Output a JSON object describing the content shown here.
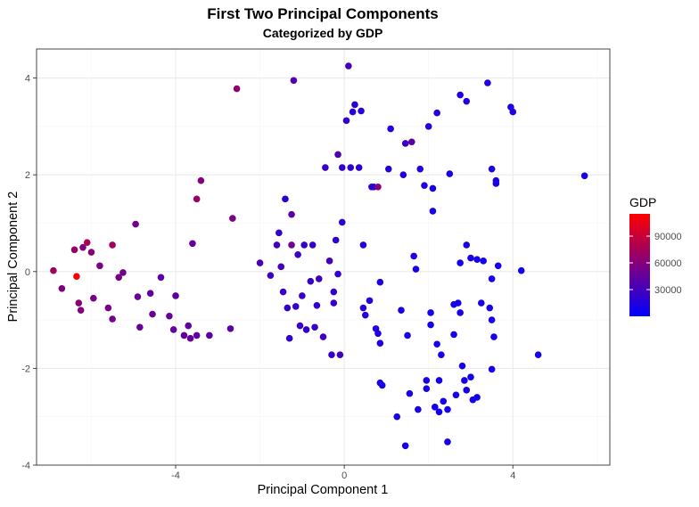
{
  "chart_data": {
    "type": "scatter",
    "title": "First Two Principal Components",
    "subtitle": "Categorized by GDP",
    "xlabel": "Principal Component 1",
    "ylabel": "Principal Component 2",
    "xlim": [
      -7.3,
      6.3
    ],
    "ylim": [
      -4,
      4.6
    ],
    "xticks": [
      -4,
      0,
      4
    ],
    "yticks": [
      -4,
      -2,
      0,
      2,
      4
    ],
    "grid": true,
    "legend": {
      "title": "GDP",
      "position": "right",
      "min": 0,
      "max": 115000,
      "breaks": [
        30000,
        60000,
        90000
      ],
      "break_labels": [
        "30000",
        "60000",
        "90000"
      ],
      "low_color": "#0000ff",
      "high_color": "#ff0000"
    },
    "points": [
      {
        "x": -6.9,
        "y": 0.02,
        "gdp": 72000
      },
      {
        "x": -6.7,
        "y": -0.35,
        "gdp": 58000
      },
      {
        "x": -6.4,
        "y": 0.45,
        "gdp": 68000
      },
      {
        "x": -6.35,
        "y": -0.1,
        "gdp": 112000
      },
      {
        "x": -6.3,
        "y": -0.65,
        "gdp": 62000
      },
      {
        "x": -6.25,
        "y": -0.8,
        "gdp": 60000
      },
      {
        "x": -6.2,
        "y": 0.5,
        "gdp": 58000
      },
      {
        "x": -6.1,
        "y": 0.6,
        "gdp": 78000
      },
      {
        "x": -6.0,
        "y": 0.4,
        "gdp": 62000
      },
      {
        "x": -5.95,
        "y": -0.55,
        "gdp": 56000
      },
      {
        "x": -5.8,
        "y": 0.12,
        "gdp": 55000
      },
      {
        "x": -5.6,
        "y": -0.75,
        "gdp": 54000
      },
      {
        "x": -5.5,
        "y": -0.98,
        "gdp": 52000
      },
      {
        "x": -5.5,
        "y": 0.55,
        "gdp": 74000
      },
      {
        "x": -5.35,
        "y": -0.12,
        "gdp": 55000
      },
      {
        "x": -5.25,
        "y": -0.02,
        "gdp": 52000
      },
      {
        "x": -4.95,
        "y": 0.98,
        "gdp": 50000
      },
      {
        "x": -4.9,
        "y": -0.52,
        "gdp": 48000
      },
      {
        "x": -4.85,
        "y": -1.15,
        "gdp": 46000
      },
      {
        "x": -4.6,
        "y": -0.45,
        "gdp": 44000
      },
      {
        "x": -4.55,
        "y": -0.88,
        "gdp": 48000
      },
      {
        "x": -4.35,
        "y": -0.12,
        "gdp": 40000
      },
      {
        "x": -4.15,
        "y": -0.92,
        "gdp": 46000
      },
      {
        "x": -4.05,
        "y": -1.2,
        "gdp": 45000
      },
      {
        "x": -4.0,
        "y": -0.5,
        "gdp": 42000
      },
      {
        "x": -3.8,
        "y": -1.32,
        "gdp": 44000
      },
      {
        "x": -3.7,
        "y": -1.12,
        "gdp": 42000
      },
      {
        "x": -3.65,
        "y": -1.38,
        "gdp": 45000
      },
      {
        "x": -3.6,
        "y": 0.58,
        "gdp": 45000
      },
      {
        "x": -3.5,
        "y": 1.5,
        "gdp": 70000
      },
      {
        "x": -3.5,
        "y": -1.32,
        "gdp": 43000
      },
      {
        "x": -3.4,
        "y": 1.88,
        "gdp": 60000
      },
      {
        "x": -3.2,
        "y": -1.32,
        "gdp": 42000
      },
      {
        "x": -2.7,
        "y": -1.18,
        "gdp": 40000
      },
      {
        "x": -2.65,
        "y": 1.1,
        "gdp": 56000
      },
      {
        "x": -2.55,
        "y": 3.78,
        "gdp": 66000
      },
      {
        "x": -2.0,
        "y": 0.18,
        "gdp": 34000
      },
      {
        "x": -1.75,
        "y": -0.08,
        "gdp": 28000
      },
      {
        "x": -1.6,
        "y": 0.55,
        "gdp": 30000
      },
      {
        "x": -1.55,
        "y": 0.8,
        "gdp": 22000
      },
      {
        "x": -1.5,
        "y": 0.1,
        "gdp": 30000
      },
      {
        "x": -1.45,
        "y": -0.42,
        "gdp": 26000
      },
      {
        "x": -1.4,
        "y": 1.5,
        "gdp": 20000
      },
      {
        "x": -1.35,
        "y": -0.75,
        "gdp": 22000
      },
      {
        "x": -1.3,
        "y": -1.38,
        "gdp": 24000
      },
      {
        "x": -1.25,
        "y": 1.18,
        "gdp": 42000
      },
      {
        "x": -1.25,
        "y": 0.55,
        "gdp": 50000
      },
      {
        "x": -1.2,
        "y": 3.95,
        "gdp": 38000
      },
      {
        "x": -1.15,
        "y": -0.72,
        "gdp": 25000
      },
      {
        "x": -1.1,
        "y": 0.35,
        "gdp": 28000
      },
      {
        "x": -1.05,
        "y": -1.12,
        "gdp": 24000
      },
      {
        "x": -1.0,
        "y": -0.5,
        "gdp": 26000
      },
      {
        "x": -0.95,
        "y": 0.55,
        "gdp": 24000
      },
      {
        "x": -0.9,
        "y": -1.2,
        "gdp": 22000
      },
      {
        "x": -0.8,
        "y": -0.2,
        "gdp": 26000
      },
      {
        "x": -0.75,
        "y": 0.55,
        "gdp": 24000
      },
      {
        "x": -0.7,
        "y": -1.15,
        "gdp": 24000
      },
      {
        "x": -0.65,
        "y": -0.7,
        "gdp": 22000
      },
      {
        "x": -0.6,
        "y": -0.15,
        "gdp": 28000
      },
      {
        "x": -0.5,
        "y": -1.35,
        "gdp": 26000
      },
      {
        "x": -0.45,
        "y": 2.15,
        "gdp": 26000
      },
      {
        "x": -0.35,
        "y": 0.22,
        "gdp": 30000
      },
      {
        "x": -0.3,
        "y": -1.72,
        "gdp": 24000
      },
      {
        "x": -0.25,
        "y": -0.65,
        "gdp": 24000
      },
      {
        "x": -0.25,
        "y": -0.42,
        "gdp": 22000
      },
      {
        "x": -0.2,
        "y": 0.65,
        "gdp": 22000
      },
      {
        "x": -0.15,
        "y": 2.42,
        "gdp": 34000
      },
      {
        "x": -0.15,
        "y": -0.05,
        "gdp": 24000
      },
      {
        "x": -0.1,
        "y": -1.72,
        "gdp": 30000
      },
      {
        "x": -0.05,
        "y": 2.15,
        "gdp": 24000
      },
      {
        "x": -0.05,
        "y": 1.02,
        "gdp": 20000
      },
      {
        "x": 0.05,
        "y": 3.12,
        "gdp": 24000
      },
      {
        "x": 0.1,
        "y": 4.25,
        "gdp": 30000
      },
      {
        "x": 0.15,
        "y": 2.15,
        "gdp": 20000
      },
      {
        "x": 0.2,
        "y": 3.3,
        "gdp": 18000
      },
      {
        "x": 0.25,
        "y": 3.45,
        "gdp": 20000
      },
      {
        "x": 0.35,
        "y": 2.15,
        "gdp": 20000
      },
      {
        "x": 0.4,
        "y": 3.32,
        "gdp": 18000
      },
      {
        "x": 0.45,
        "y": -0.75,
        "gdp": 18000
      },
      {
        "x": 0.45,
        "y": 0.55,
        "gdp": 16000
      },
      {
        "x": 0.5,
        "y": -0.9,
        "gdp": 18000
      },
      {
        "x": 0.6,
        "y": -0.6,
        "gdp": 16000
      },
      {
        "x": 0.65,
        "y": 1.75,
        "gdp": 24000
      },
      {
        "x": 0.7,
        "y": 1.75,
        "gdp": 18000
      },
      {
        "x": 0.75,
        "y": -1.18,
        "gdp": 16000
      },
      {
        "x": 0.8,
        "y": 1.75,
        "gdp": 62000
      },
      {
        "x": 0.8,
        "y": -1.28,
        "gdp": 14000
      },
      {
        "x": 0.85,
        "y": -1.48,
        "gdp": 14000
      },
      {
        "x": 0.85,
        "y": -0.22,
        "gdp": 14000
      },
      {
        "x": 0.9,
        "y": -2.35,
        "gdp": 12000
      },
      {
        "x": 0.85,
        "y": -2.3,
        "gdp": 12000
      },
      {
        "x": 1.05,
        "y": 2.12,
        "gdp": 18000
      },
      {
        "x": 1.1,
        "y": 2.95,
        "gdp": 16000
      },
      {
        "x": 1.25,
        "y": -3.0,
        "gdp": 12000
      },
      {
        "x": 1.35,
        "y": -0.8,
        "gdp": 12000
      },
      {
        "x": 1.4,
        "y": 2.0,
        "gdp": 16000
      },
      {
        "x": 1.45,
        "y": 2.65,
        "gdp": 26000
      },
      {
        "x": 1.45,
        "y": -3.6,
        "gdp": 12000
      },
      {
        "x": 1.5,
        "y": -1.32,
        "gdp": 12000
      },
      {
        "x": 1.55,
        "y": -2.52,
        "gdp": 12000
      },
      {
        "x": 1.6,
        "y": 2.68,
        "gdp": 40000
      },
      {
        "x": 1.65,
        "y": 0.32,
        "gdp": 14000
      },
      {
        "x": 1.7,
        "y": 0.05,
        "gdp": 12000
      },
      {
        "x": 1.75,
        "y": -2.85,
        "gdp": 10000
      },
      {
        "x": 1.8,
        "y": 2.12,
        "gdp": 14000
      },
      {
        "x": 1.9,
        "y": 1.78,
        "gdp": 12000
      },
      {
        "x": 1.95,
        "y": -2.25,
        "gdp": 10000
      },
      {
        "x": 1.95,
        "y": -2.42,
        "gdp": 10000
      },
      {
        "x": 2.0,
        "y": 3.0,
        "gdp": 14000
      },
      {
        "x": 2.05,
        "y": -0.85,
        "gdp": 10000
      },
      {
        "x": 2.05,
        "y": -1.1,
        "gdp": 10000
      },
      {
        "x": 2.1,
        "y": 1.25,
        "gdp": 10000
      },
      {
        "x": 2.1,
        "y": 1.72,
        "gdp": 10000
      },
      {
        "x": 2.15,
        "y": -2.8,
        "gdp": 10000
      },
      {
        "x": 2.2,
        "y": 3.28,
        "gdp": 14000
      },
      {
        "x": 2.2,
        "y": -1.5,
        "gdp": 10000
      },
      {
        "x": 2.25,
        "y": -2.9,
        "gdp": 10000
      },
      {
        "x": 2.25,
        "y": -2.25,
        "gdp": 10000
      },
      {
        "x": 2.3,
        "y": -1.72,
        "gdp": 10000
      },
      {
        "x": 2.35,
        "y": -2.68,
        "gdp": 10000
      },
      {
        "x": 2.45,
        "y": -3.52,
        "gdp": 10000
      },
      {
        "x": 2.45,
        "y": -2.85,
        "gdp": 10000
      },
      {
        "x": 2.5,
        "y": 2.02,
        "gdp": 12000
      },
      {
        "x": 2.6,
        "y": -1.3,
        "gdp": 10000
      },
      {
        "x": 2.6,
        "y": -0.68,
        "gdp": 10000
      },
      {
        "x": 2.65,
        "y": -2.55,
        "gdp": 10000
      },
      {
        "x": 2.7,
        "y": -0.65,
        "gdp": 10000
      },
      {
        "x": 2.75,
        "y": 3.65,
        "gdp": 14000
      },
      {
        "x": 2.75,
        "y": 0.18,
        "gdp": 10000
      },
      {
        "x": 2.75,
        "y": -0.85,
        "gdp": 10000
      },
      {
        "x": 2.8,
        "y": -1.95,
        "gdp": 10000
      },
      {
        "x": 2.85,
        "y": -2.25,
        "gdp": 10000
      },
      {
        "x": 2.9,
        "y": 3.52,
        "gdp": 14000
      },
      {
        "x": 2.9,
        "y": 0.55,
        "gdp": 12000
      },
      {
        "x": 2.9,
        "y": -2.45,
        "gdp": 10000
      },
      {
        "x": 3.0,
        "y": 0.28,
        "gdp": 12000
      },
      {
        "x": 3.0,
        "y": -2.18,
        "gdp": 10000
      },
      {
        "x": 3.05,
        "y": -2.65,
        "gdp": 10000
      },
      {
        "x": 3.15,
        "y": 0.25,
        "gdp": 10000
      },
      {
        "x": 3.15,
        "y": -2.6,
        "gdp": 10000
      },
      {
        "x": 3.25,
        "y": -0.65,
        "gdp": 10000
      },
      {
        "x": 3.3,
        "y": 0.22,
        "gdp": 10000
      },
      {
        "x": 3.4,
        "y": 3.9,
        "gdp": 14000
      },
      {
        "x": 3.45,
        "y": -0.75,
        "gdp": 10000
      },
      {
        "x": 3.5,
        "y": 2.12,
        "gdp": 12000
      },
      {
        "x": 3.5,
        "y": -0.15,
        "gdp": 10000
      },
      {
        "x": 3.5,
        "y": -1.0,
        "gdp": 10000
      },
      {
        "x": 3.5,
        "y": -2.02,
        "gdp": 10000
      },
      {
        "x": 3.55,
        "y": -1.35,
        "gdp": 10000
      },
      {
        "x": 3.6,
        "y": 1.82,
        "gdp": 12000
      },
      {
        "x": 3.6,
        "y": 1.88,
        "gdp": 12000
      },
      {
        "x": 3.65,
        "y": 0.12,
        "gdp": 10000
      },
      {
        "x": 3.95,
        "y": 3.4,
        "gdp": 14000
      },
      {
        "x": 4.0,
        "y": 3.3,
        "gdp": 14000
      },
      {
        "x": 4.2,
        "y": 0.02,
        "gdp": 10000
      },
      {
        "x": 4.6,
        "y": -1.72,
        "gdp": 10000
      },
      {
        "x": 5.7,
        "y": 1.98,
        "gdp": 10000
      }
    ]
  }
}
